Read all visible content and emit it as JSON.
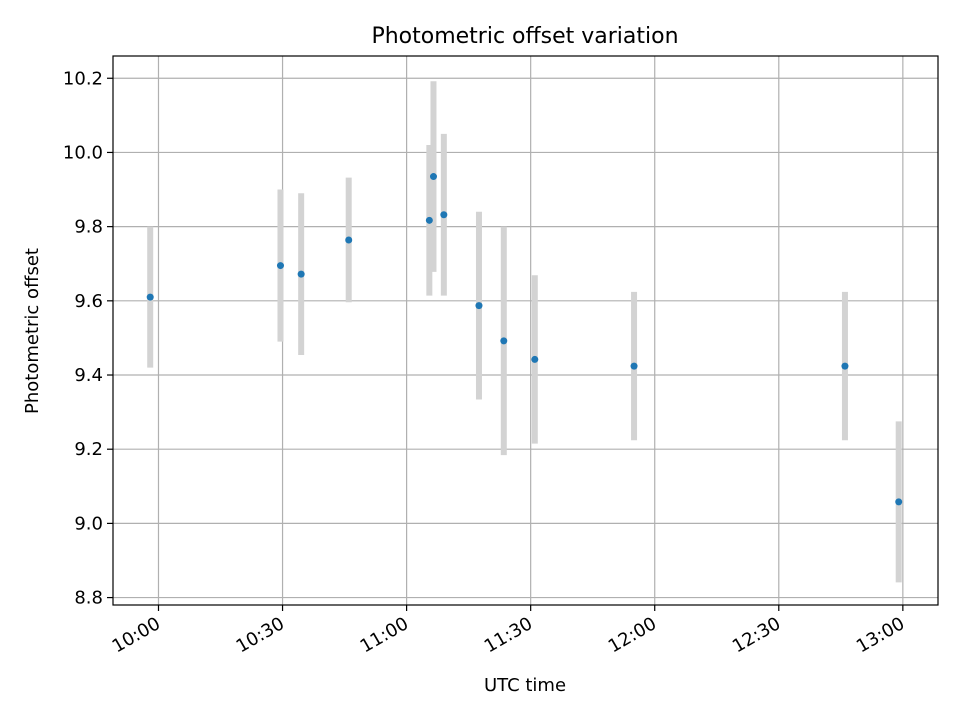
{
  "chart_data": {
    "type": "scatter",
    "title": "Photometric offset variation",
    "xlabel": "UTC time",
    "ylabel": "Photometric offset",
    "x_ticks": [
      "10:00",
      "10:30",
      "11:00",
      "11:30",
      "12:00",
      "12:30",
      "13:00"
    ],
    "y_ticks": [
      "8.8",
      "9.0",
      "9.2",
      "9.4",
      "9.6",
      "9.8",
      "10.0",
      "10.2"
    ],
    "xlim": [
      "09:49:00",
      "13:08:30"
    ],
    "ylim": [
      8.78,
      10.26
    ],
    "grid": true,
    "colors": {
      "point": "#1f77b4",
      "errorbar": "#d3d3d3",
      "grid": "#b0b0b0"
    },
    "points": [
      {
        "x": "09:58:00",
        "y": 9.61,
        "yerr": 0.19
      },
      {
        "x": "10:29:30",
        "y": 9.695,
        "yerr": 0.205
      },
      {
        "x": "10:34:30",
        "y": 9.672,
        "yerr": 0.218
      },
      {
        "x": "10:46:00",
        "y": 9.764,
        "yerr": 0.168
      },
      {
        "x": "11:05:30",
        "y": 9.817,
        "yerr": 0.203
      },
      {
        "x": "11:06:30",
        "y": 9.935,
        "yerr": 0.257
      },
      {
        "x": "11:09:00",
        "y": 9.832,
        "yerr": 0.218
      },
      {
        "x": "11:17:30",
        "y": 9.587,
        "yerr": 0.253
      },
      {
        "x": "11:23:30",
        "y": 9.492,
        "yerr": 0.308
      },
      {
        "x": "11:31:00",
        "y": 9.442,
        "yerr": 0.227
      },
      {
        "x": "11:55:00",
        "y": 9.424,
        "yerr": 0.2
      },
      {
        "x": "12:46:00",
        "y": 9.424,
        "yerr": 0.2
      },
      {
        "x": "12:59:00",
        "y": 9.058,
        "yerr": 0.217
      }
    ]
  }
}
